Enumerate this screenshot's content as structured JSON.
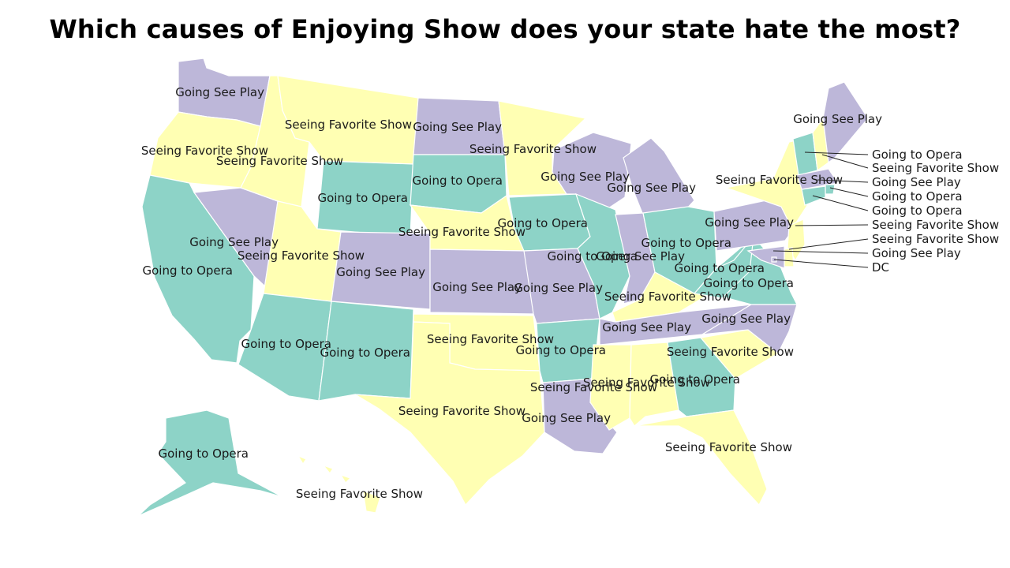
{
  "title": "Which causes of Enjoying Show does your state hate the most?",
  "categories": {
    "Going See Play": "#bdb7d9",
    "Seeing Favorite Show": "#ffffb3",
    "Going to Opera": "#8dd3c7"
  },
  "states": {
    "WA": {
      "value": "Going See Play"
    },
    "OR": {
      "value": "Seeing Favorite Show"
    },
    "CA": {
      "value": "Going to Opera"
    },
    "NV": {
      "value": "Going See Play"
    },
    "ID": {
      "value": "Seeing Favorite Show"
    },
    "MT": {
      "value": "Seeing Favorite Show"
    },
    "WY": {
      "value": "Going to Opera"
    },
    "UT": {
      "value": "Seeing Favorite Show"
    },
    "AZ": {
      "value": "Going to Opera"
    },
    "NM": {
      "value": "Going to Opera"
    },
    "CO": {
      "value": "Going See Play"
    },
    "ND": {
      "value": "Going See Play"
    },
    "SD": {
      "value": "Going to Opera"
    },
    "NE": {
      "value": "Seeing Favorite Show"
    },
    "KS": {
      "value": "Going See Play"
    },
    "OK": {
      "value": "Seeing Favorite Show"
    },
    "TX": {
      "value": "Seeing Favorite Show"
    },
    "MN": {
      "value": "Seeing Favorite Show"
    },
    "IA": {
      "value": "Going to Opera"
    },
    "MO": {
      "value": "Going See Play"
    },
    "AR": {
      "value": "Going to Opera"
    },
    "LA": {
      "value": "Going See Play"
    },
    "WI": {
      "value": "Going See Play"
    },
    "IL": {
      "value": "Going to Opera"
    },
    "MI": {
      "value": "Going See Play"
    },
    "IN": {
      "value": "Going See Play"
    },
    "OH": {
      "value": "Going to Opera"
    },
    "KY": {
      "value": "Seeing Favorite Show"
    },
    "TN": {
      "value": "Going See Play"
    },
    "MS": {
      "value": "Seeing Favorite Show"
    },
    "AL": {
      "value": "Seeing Favorite Show"
    },
    "GA": {
      "value": "Going to Opera"
    },
    "FL": {
      "value": "Seeing Favorite Show"
    },
    "SC": {
      "value": "Seeing Favorite Show"
    },
    "NC": {
      "value": "Going See Play"
    },
    "VA": {
      "value": "Going to Opera"
    },
    "WV": {
      "value": "Going to Opera"
    },
    "PA": {
      "value": "Going See Play"
    },
    "NY": {
      "value": "Seeing Favorite Show"
    },
    "VT": {
      "value": "Going to Opera"
    },
    "NH": {
      "value": "Seeing Favorite Show"
    },
    "ME": {
      "value": "Going See Play"
    },
    "MA": {
      "value": "Going See Play"
    },
    "RI": {
      "value": "Going to Opera"
    },
    "CT": {
      "value": "Going to Opera"
    },
    "NJ": {
      "value": "Seeing Favorite Show"
    },
    "DE": {
      "value": "Seeing Favorite Show"
    },
    "MD": {
      "value": "Going See Play"
    },
    "DC": {
      "value": "Going See Play"
    },
    "AK": {
      "value": "Going to Opera"
    },
    "HI": {
      "value": "Seeing Favorite Show"
    }
  },
  "callout_labels": [
    {
      "text": "Going to Opera"
    },
    {
      "text": "Seeing Favorite Show"
    },
    {
      "text": "Going See Play"
    },
    {
      "text": "Going to Opera"
    },
    {
      "text": "Going to Opera"
    },
    {
      "text": "Seeing Favorite Show"
    },
    {
      "text": "Seeing Favorite Show"
    },
    {
      "text": "Going See Play"
    },
    {
      "text": "DC"
    }
  ]
}
